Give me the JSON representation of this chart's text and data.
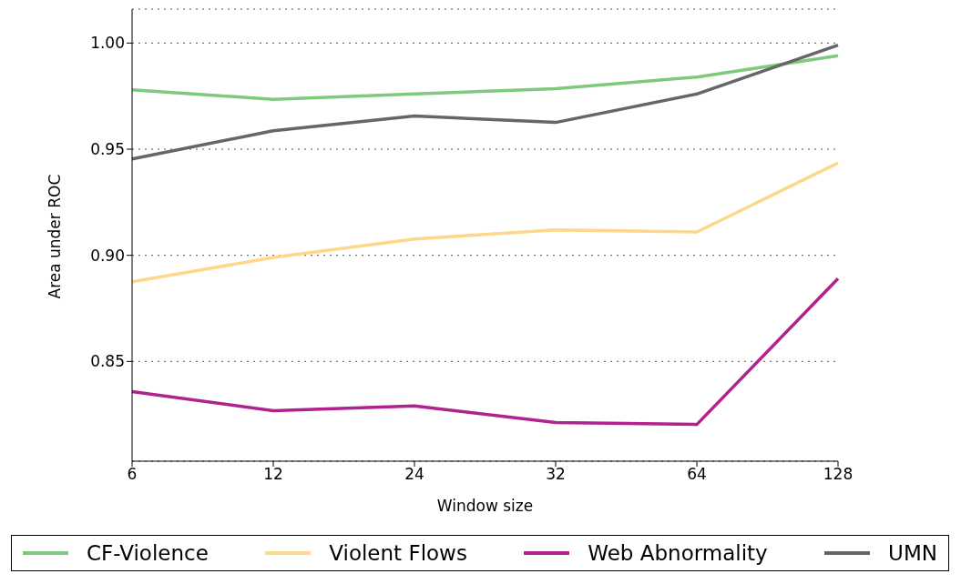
{
  "chart_data": {
    "type": "line",
    "xlabel": "Window size",
    "ylabel": "Area under ROC",
    "categories": [
      "6",
      "12",
      "24",
      "32",
      "64",
      "128"
    ],
    "series": [
      {
        "name": "CF-Violence",
        "color": "#7fc97f",
        "values": [
          0.978,
          0.9735,
          0.976,
          0.9785,
          0.984,
          0.994
        ]
      },
      {
        "name": "Violent Flows",
        "color": "#fdd88a",
        "values": [
          0.8875,
          0.899,
          0.9077,
          0.912,
          0.911,
          0.9435
        ]
      },
      {
        "name": "Web Abnormality",
        "color": "#b0228c",
        "values": [
          0.8358,
          0.8268,
          0.829,
          0.8212,
          0.8203,
          0.889
        ]
      },
      {
        "name": "UMN",
        "color": "#666666",
        "values": [
          0.9454,
          0.9587,
          0.9656,
          0.9626,
          0.976,
          0.999
        ]
      }
    ],
    "ylim": [
      0.803,
      1.016
    ],
    "yticks": [
      0.85,
      {
        "value": 0.9,
        "label": "0.90"
      },
      0.95,
      {
        "value": 1.0,
        "label": "1.00"
      }
    ],
    "grid": "y",
    "legend": "bottom",
    "marker": "none",
    "line_style": "solid"
  }
}
